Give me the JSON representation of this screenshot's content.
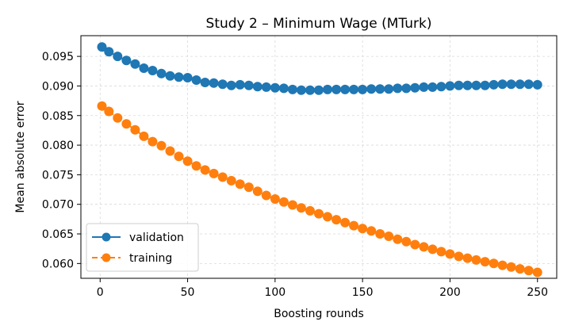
{
  "chart_data": {
    "type": "line",
    "title": "Study 2 – Minimum Wage (MTurk)",
    "xlabel": "Boosting rounds",
    "ylabel": "Mean absolute error",
    "xlim": [
      -11,
      261
    ],
    "ylim": [
      0.0575,
      0.0985
    ],
    "xticks": [
      0,
      50,
      100,
      150,
      200,
      250
    ],
    "yticks": [
      0.06,
      0.065,
      0.07,
      0.075,
      0.08,
      0.085,
      0.09,
      0.095
    ],
    "ytick_labels": [
      "0.060",
      "0.065",
      "0.070",
      "0.075",
      "0.080",
      "0.085",
      "0.090",
      "0.095"
    ],
    "grid": true,
    "legend_position": "lower-left",
    "series": [
      {
        "name": "validation",
        "color": "#1f77b4",
        "line_style": "solid",
        "marker": "circle",
        "points": [
          [
            1,
            0.0966
          ],
          [
            5,
            0.0958
          ],
          [
            10,
            0.095
          ],
          [
            15,
            0.0943
          ],
          [
            20,
            0.0937
          ],
          [
            25,
            0.093
          ],
          [
            30,
            0.0926
          ],
          [
            35,
            0.0921
          ],
          [
            40,
            0.0917
          ],
          [
            45,
            0.0915
          ],
          [
            50,
            0.0914
          ],
          [
            55,
            0.091
          ],
          [
            60,
            0.0906
          ],
          [
            65,
            0.0905
          ],
          [
            70,
            0.0903
          ],
          [
            75,
            0.0901
          ],
          [
            80,
            0.0902
          ],
          [
            85,
            0.0901
          ],
          [
            90,
            0.0899
          ],
          [
            95,
            0.0898
          ],
          [
            100,
            0.0897
          ],
          [
            105,
            0.0896
          ],
          [
            110,
            0.0894
          ],
          [
            115,
            0.0893
          ],
          [
            120,
            0.0893
          ],
          [
            125,
            0.0893
          ],
          [
            130,
            0.0894
          ],
          [
            135,
            0.0894
          ],
          [
            140,
            0.0894
          ],
          [
            145,
            0.0894
          ],
          [
            150,
            0.0894
          ],
          [
            155,
            0.0895
          ],
          [
            160,
            0.0895
          ],
          [
            165,
            0.0895
          ],
          [
            170,
            0.0896
          ],
          [
            175,
            0.0896
          ],
          [
            180,
            0.0897
          ],
          [
            185,
            0.0898
          ],
          [
            190,
            0.0898
          ],
          [
            195,
            0.0899
          ],
          [
            200,
            0.09
          ],
          [
            205,
            0.0901
          ],
          [
            210,
            0.0901
          ],
          [
            215,
            0.0901
          ],
          [
            220,
            0.0901
          ],
          [
            225,
            0.0902
          ],
          [
            230,
            0.0903
          ],
          [
            235,
            0.0903
          ],
          [
            240,
            0.0903
          ],
          [
            245,
            0.0903
          ],
          [
            250,
            0.0902
          ]
        ]
      },
      {
        "name": "training",
        "color": "#ff7f0e",
        "line_style": "dashed",
        "marker": "circle",
        "points": [
          [
            1,
            0.0866
          ],
          [
            5,
            0.0857
          ],
          [
            10,
            0.0846
          ],
          [
            15,
            0.0836
          ],
          [
            20,
            0.0826
          ],
          [
            25,
            0.0815
          ],
          [
            30,
            0.0806
          ],
          [
            35,
            0.0799
          ],
          [
            40,
            0.079
          ],
          [
            45,
            0.0781
          ],
          [
            50,
            0.0773
          ],
          [
            55,
            0.0765
          ],
          [
            60,
            0.0758
          ],
          [
            65,
            0.0752
          ],
          [
            70,
            0.0746
          ],
          [
            75,
            0.074
          ],
          [
            80,
            0.0734
          ],
          [
            85,
            0.0729
          ],
          [
            90,
            0.0722
          ],
          [
            95,
            0.0715
          ],
          [
            100,
            0.0709
          ],
          [
            105,
            0.0704
          ],
          [
            110,
            0.0699
          ],
          [
            115,
            0.0694
          ],
          [
            120,
            0.0689
          ],
          [
            125,
            0.0684
          ],
          [
            130,
            0.0679
          ],
          [
            135,
            0.0674
          ],
          [
            140,
            0.0669
          ],
          [
            145,
            0.0664
          ],
          [
            150,
            0.0659
          ],
          [
            155,
            0.0655
          ],
          [
            160,
            0.065
          ],
          [
            165,
            0.0646
          ],
          [
            170,
            0.0641
          ],
          [
            175,
            0.0637
          ],
          [
            180,
            0.0632
          ],
          [
            185,
            0.0628
          ],
          [
            190,
            0.0624
          ],
          [
            195,
            0.062
          ],
          [
            200,
            0.0616
          ],
          [
            205,
            0.0612
          ],
          [
            210,
            0.0609
          ],
          [
            215,
            0.0606
          ],
          [
            220,
            0.0603
          ],
          [
            225,
            0.06
          ],
          [
            230,
            0.0597
          ],
          [
            235,
            0.0594
          ],
          [
            240,
            0.0591
          ],
          [
            245,
            0.0588
          ],
          [
            250,
            0.0585
          ]
        ]
      }
    ]
  }
}
